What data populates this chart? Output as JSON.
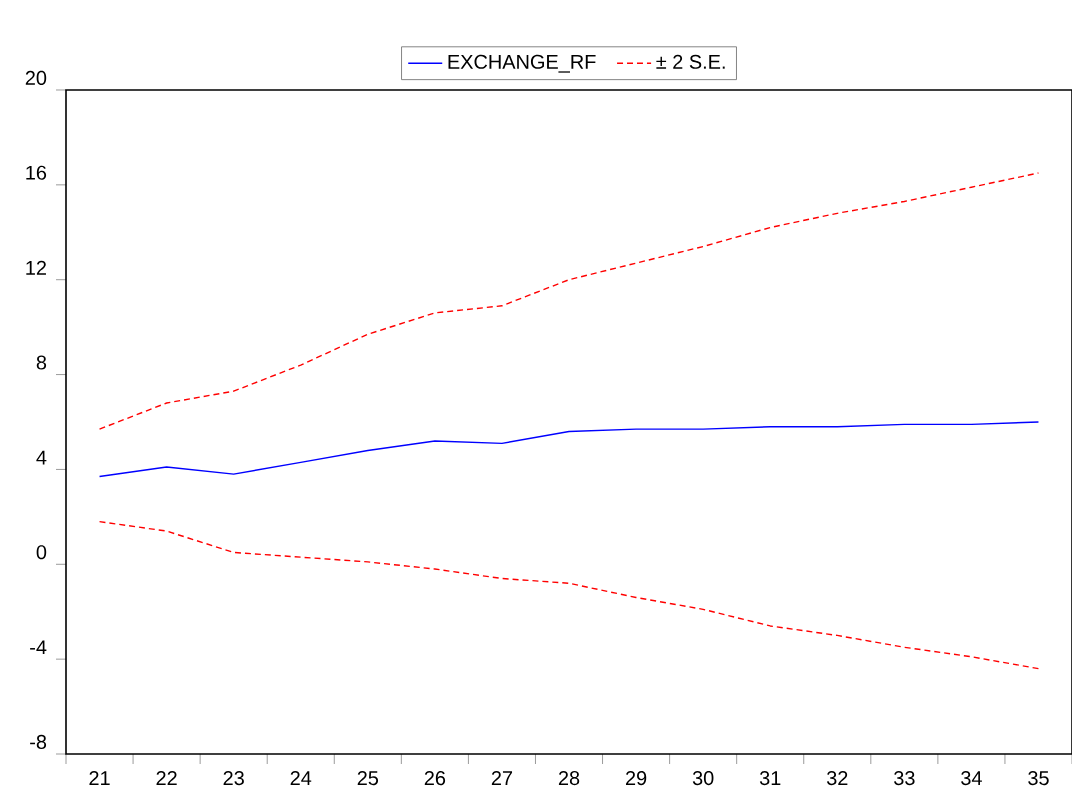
{
  "chart_data": {
    "type": "line",
    "categories": [
      "21",
      "22",
      "23",
      "24",
      "25",
      "26",
      "27",
      "28",
      "29",
      "30",
      "31",
      "32",
      "33",
      "34",
      "35"
    ],
    "series": [
      {
        "name": "EXCHANGE_RF",
        "color": "#0000ff",
        "line_style": "solid",
        "values": [
          3.7,
          4.1,
          3.8,
          4.3,
          4.8,
          5.2,
          5.1,
          5.6,
          5.7,
          5.7,
          5.8,
          5.8,
          5.9,
          5.9,
          6.0
        ]
      },
      {
        "name": "± 2 S.E.",
        "color": "#ff0000",
        "line_style": "dashed",
        "values": [
          5.7,
          6.8,
          7.3,
          8.4,
          9.7,
          10.6,
          10.9,
          12.0,
          12.7,
          13.4,
          14.2,
          14.8,
          15.3,
          15.9,
          16.5
        ]
      },
      {
        "color": "#ff0000",
        "line_style": "dashed",
        "values": [
          1.8,
          1.4,
          0.5,
          0.3,
          0.1,
          -0.2,
          -0.6,
          -0.8,
          -1.4,
          -1.9,
          -2.6,
          -3.0,
          -3.5,
          -3.9,
          -4.4
        ]
      }
    ],
    "ylim": [
      -8,
      20
    ],
    "yticks": [
      -8,
      -4,
      0,
      4,
      8,
      12,
      16,
      20
    ],
    "grid": false,
    "legend": "top",
    "marker": "none"
  }
}
